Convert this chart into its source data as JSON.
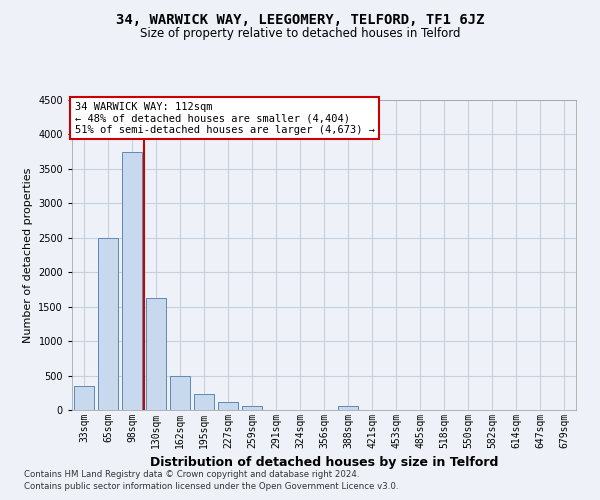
{
  "title": "34, WARWICK WAY, LEEGOMERY, TELFORD, TF1 6JZ",
  "subtitle": "Size of property relative to detached houses in Telford",
  "xlabel": "Distribution of detached houses by size in Telford",
  "ylabel": "Number of detached properties",
  "footnote1": "Contains HM Land Registry data © Crown copyright and database right 2024.",
  "footnote2": "Contains public sector information licensed under the Open Government Licence v3.0.",
  "annotation_line1": "34 WARWICK WAY: 112sqm",
  "annotation_line2": "← 48% of detached houses are smaller (4,404)",
  "annotation_line3": "51% of semi-detached houses are larger (4,673) →",
  "bar_color": "#c8d8ed",
  "bar_edge_color": "#5a8ab8",
  "redline_color": "#cc0000",
  "categories": [
    "33sqm",
    "65sqm",
    "98sqm",
    "130sqm",
    "162sqm",
    "195sqm",
    "227sqm",
    "259sqm",
    "291sqm",
    "324sqm",
    "356sqm",
    "388sqm",
    "421sqm",
    "453sqm",
    "485sqm",
    "518sqm",
    "550sqm",
    "582sqm",
    "614sqm",
    "647sqm",
    "679sqm"
  ],
  "values": [
    350,
    2500,
    3750,
    1620,
    500,
    230,
    110,
    60,
    0,
    0,
    0,
    65,
    0,
    0,
    0,
    0,
    0,
    0,
    0,
    0,
    0
  ],
  "ylim": [
    0,
    4500
  ],
  "yticks": [
    0,
    500,
    1000,
    1500,
    2000,
    2500,
    3000,
    3500,
    4000,
    4500
  ],
  "redline_x": 2.5,
  "bg_color": "#eef2f8",
  "grid_color": "#d0d8e8",
  "title_fontsize": 10,
  "subtitle_fontsize": 8.5,
  "xlabel_fontsize": 9,
  "ylabel_fontsize": 8,
  "tick_fontsize": 7,
  "annotation_fontsize": 7.5,
  "footnote_fontsize": 6.2
}
